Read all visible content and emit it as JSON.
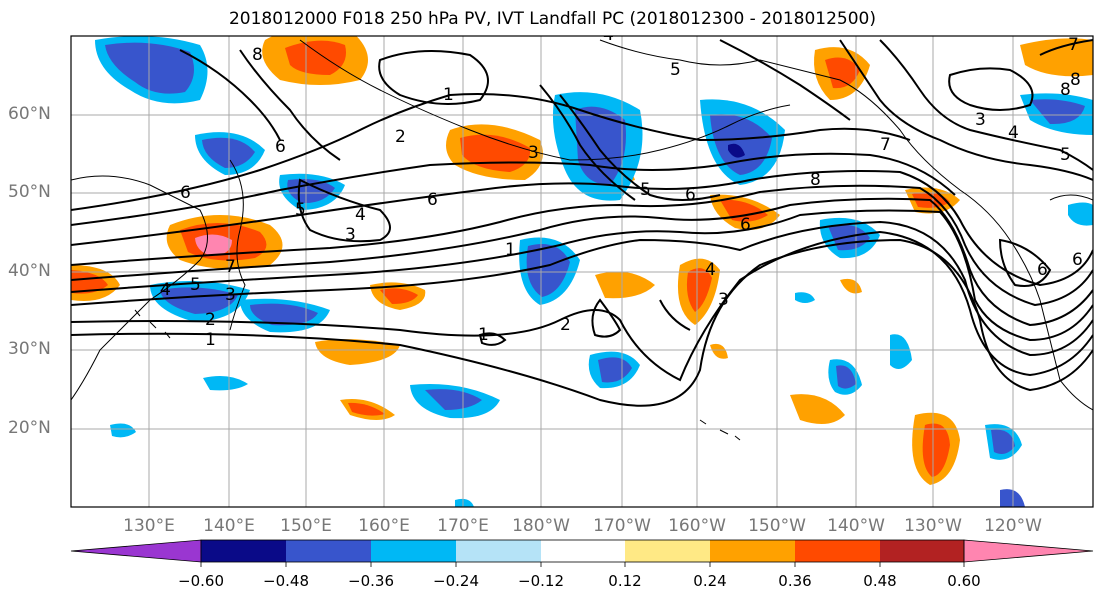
{
  "title": "2018012000 F018 250 hPa PV, IVT Landfall PC (2018012300 - 2018012500)",
  "lat_labels": [
    "60°N",
    "50°N",
    "40°N",
    "30°N",
    "20°N"
  ],
  "lon_labels": [
    "130°E",
    "140°E",
    "150°E",
    "160°E",
    "170°E",
    "180°W",
    "170°W",
    "160°W",
    "150°W",
    "140°W",
    "130°W",
    "120°W"
  ],
  "colorbar": {
    "ticks": [
      "−0.60",
      "−0.48",
      "−0.36",
      "−0.24",
      "−0.12",
      "0.12",
      "0.24",
      "0.36",
      "0.48",
      "0.60"
    ],
    "colors": [
      "#9a36d1",
      "#0a0a88",
      "#3855cc",
      "#00b8f5",
      "#b5e3f7",
      "#ffffff",
      "#ffe985",
      "#ffa100",
      "#ff4a00",
      "#b22222",
      "#ff85b0"
    ]
  },
  "contour_labels": [
    "8",
    "1",
    "2",
    "3",
    "4",
    "5",
    "6",
    "7",
    "6",
    "3",
    "4",
    "5",
    "6",
    "1",
    "2",
    "3",
    "4",
    "5",
    "6",
    "1",
    "2",
    "3",
    "4",
    "5",
    "6",
    "7",
    "8",
    "3",
    "4",
    "5",
    "6",
    "7",
    "8",
    "1",
    "6",
    "8"
  ]
}
